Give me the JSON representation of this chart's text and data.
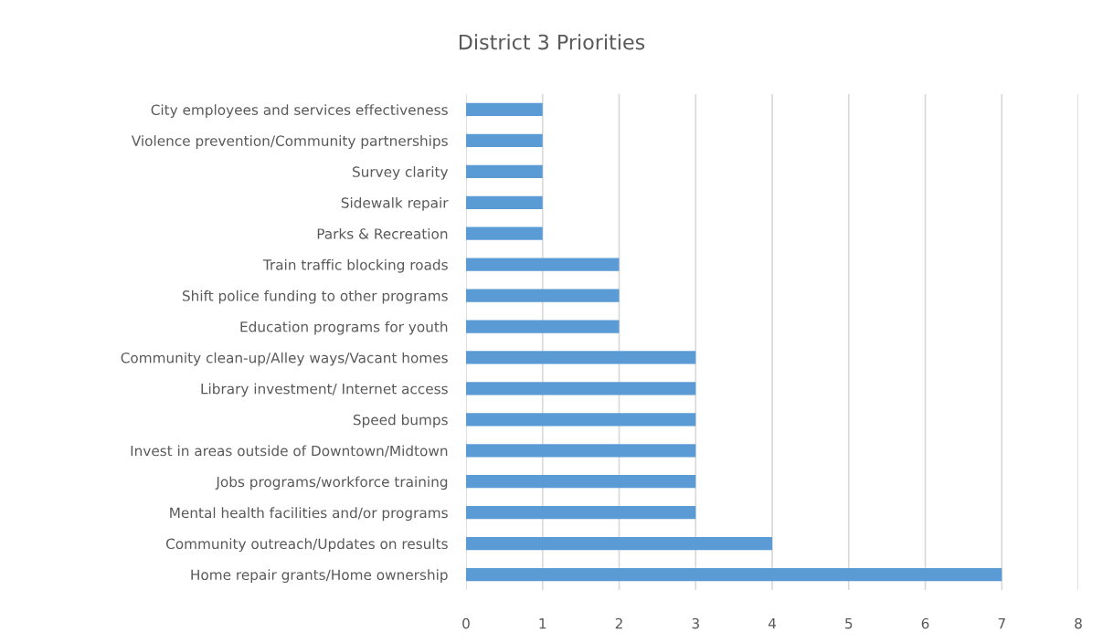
{
  "chart_data": {
    "type": "bar",
    "orientation": "horizontal",
    "title": "District 3 Priorities",
    "categories": [
      "City employees and services effectiveness",
      "Violence prevention/Community partnerships",
      "Survey clarity",
      "Sidewalk repair",
      "Parks & Recreation",
      "Train traffic blocking roads",
      "Shift police funding to other programs",
      "Education programs for youth",
      "Community clean-up/Alley ways/Vacant homes",
      "Library investment/ Internet access",
      "Speed bumps",
      "Invest in areas outside of Downtown/Midtown",
      "Jobs programs/workforce training",
      "Mental health facilities and/or programs",
      "Community outreach/Updates on results",
      "Home repair grants/Home ownership"
    ],
    "values": [
      1,
      1,
      1,
      1,
      1,
      2,
      2,
      2,
      3,
      3,
      3,
      3,
      3,
      3,
      4,
      7
    ],
    "color": "#5b9bd5",
    "xlim": [
      0,
      8
    ],
    "xticks": [
      0,
      1,
      2,
      3,
      4,
      5,
      6,
      7,
      8
    ],
    "grid": "x",
    "legend": false
  }
}
